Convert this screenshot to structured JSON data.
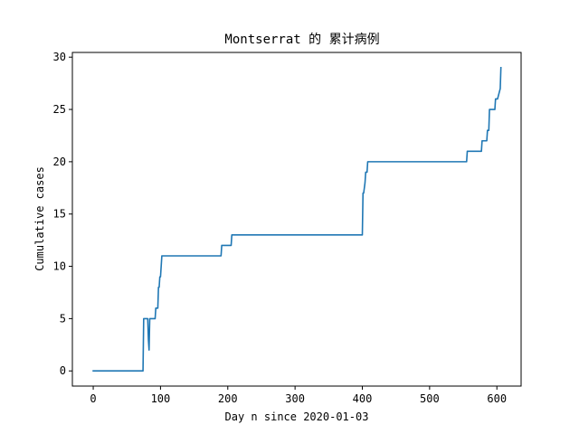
{
  "chart_data": {
    "type": "line",
    "title": "Montserrat 的 累计病例",
    "xlabel": "Day n since 2020-01-03",
    "ylabel": "Cumulative cases",
    "xlim": [
      -31,
      636
    ],
    "ylim": [
      -1.45,
      30.45
    ],
    "xticks": [
      0,
      100,
      200,
      300,
      400,
      500,
      600
    ],
    "yticks": [
      0,
      5,
      10,
      15,
      20,
      25,
      30
    ],
    "grid": false,
    "line_color": "#1f77b4",
    "series": [
      {
        "x": [
          0,
          74,
          75,
          81,
          82,
          83,
          84,
          85,
          86,
          92,
          93,
          95,
          96,
          97,
          98,
          99,
          100,
          101,
          102,
          103,
          190,
          191,
          205,
          206,
          400,
          401,
          402,
          404,
          405,
          406,
          407,
          408,
          409,
          410,
          555,
          556,
          577,
          578,
          585,
          586,
          588,
          589,
          597,
          598,
          600,
          601,
          605,
          606
        ],
        "y": [
          0,
          0,
          5,
          5,
          3,
          2,
          5,
          5,
          5,
          5,
          6,
          6,
          6,
          8,
          8,
          9,
          9,
          10,
          11,
          11,
          11,
          12,
          12,
          13,
          13,
          17,
          17,
          18,
          19,
          19,
          19,
          20,
          20,
          20,
          20,
          21,
          21,
          22,
          22,
          23,
          23,
          25,
          25,
          26,
          26,
          26,
          27,
          29
        ]
      }
    ]
  }
}
